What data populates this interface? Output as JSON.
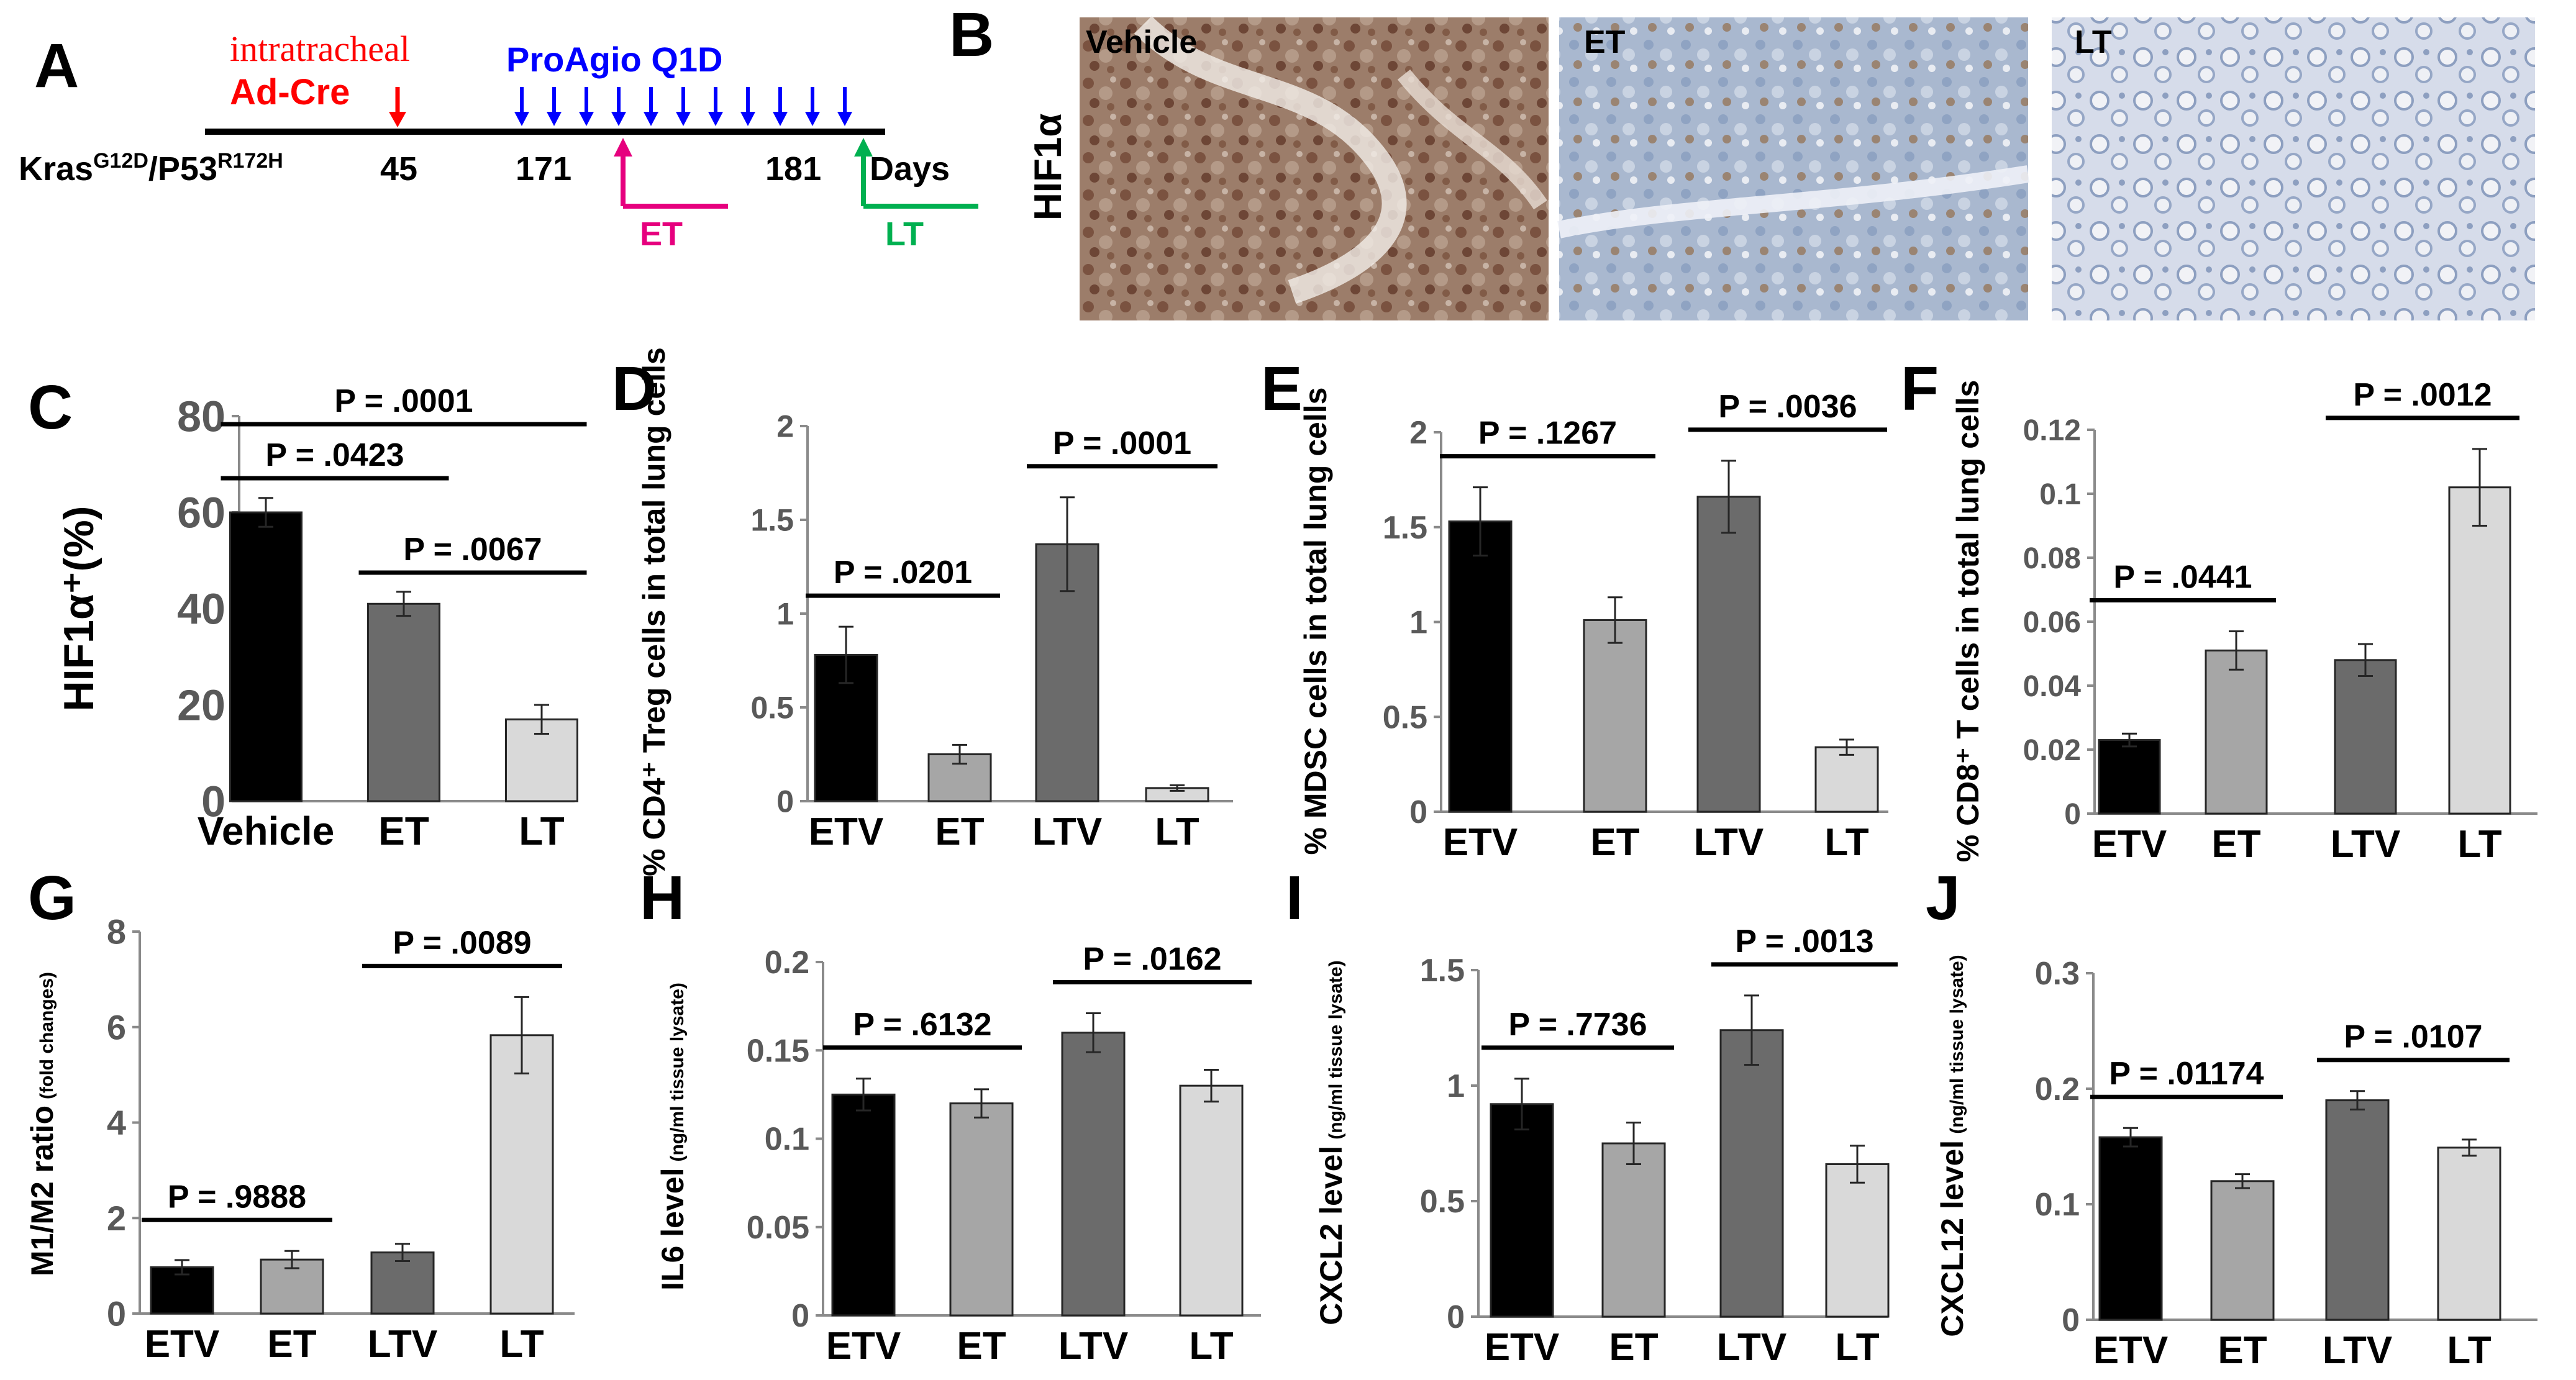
{
  "panels": {
    "A": "A",
    "B": "B",
    "C": "C",
    "D": "D",
    "E": "E",
    "F": "F",
    "G": "G",
    "H": "H",
    "I": "I",
    "J": "J"
  },
  "timeline": {
    "route": "intratracheal",
    "adcre": "Ad-Cre",
    "proagio": "ProAgio Q1D",
    "strain_kras": "Kras",
    "strain_kras_sup": "G12D",
    "strain_p53": "/P53",
    "strain_p53_sup": "R172H",
    "day_a": "45",
    "day_b": "171",
    "day_c": "181",
    "days": "Days",
    "et": "ET",
    "lt": "LT"
  },
  "histology": {
    "marker": "HIF1α",
    "images": [
      "Vehicle",
      "ET",
      "LT"
    ]
  },
  "colors": {
    "bar1": "#000000",
    "bar2": "#a6a6a6",
    "bar3": "#6b6b6b",
    "bar4": "#d9d9d9",
    "adcre": "#ff0000",
    "proagio": "#0000ff",
    "et_bracket": "#e6007e",
    "lt_bracket": "#00b050"
  },
  "chart_data": [
    {
      "panel": "C",
      "type": "bar",
      "categories": [
        "Vehicle",
        "ET",
        "LT"
      ],
      "values": [
        60,
        41,
        17
      ],
      "errors": [
        3,
        2.5,
        3
      ],
      "ylabel": "HIF1α⁺(%)",
      "ylim": [
        0,
        80
      ],
      "yticks": [
        "0",
        "20",
        "40",
        "60",
        "80"
      ],
      "pvalues": [
        {
          "label": "P = .0001",
          "from": 0,
          "to": 2
        },
        {
          "label": "P = .0423",
          "from": 0,
          "to": 1
        },
        {
          "label": "P = .0067",
          "from": 1,
          "to": 2
        }
      ]
    },
    {
      "panel": "D",
      "type": "bar",
      "categories": [
        "ETV",
        "ET",
        "LTV",
        "LT"
      ],
      "values": [
        0.78,
        0.25,
        1.37,
        0.07
      ],
      "errors": [
        0.15,
        0.05,
        0.25,
        0.015
      ],
      "ylabel": "% CD4⁺ Treg cells in total lung cells",
      "ylim": [
        0,
        2
      ],
      "yticks": [
        "0",
        "0.5",
        "1",
        "1.5",
        "2"
      ],
      "pvalues": [
        {
          "label": "P = .0201",
          "from": 0,
          "to": 1
        },
        {
          "label": "P = .0001",
          "from": 2,
          "to": 3
        }
      ]
    },
    {
      "panel": "E",
      "type": "bar",
      "categories": [
        "ETV",
        "ET",
        "LTV",
        "LT"
      ],
      "values": [
        1.53,
        1.01,
        1.66,
        0.34
      ],
      "errors": [
        0.18,
        0.12,
        0.19,
        0.04
      ],
      "ylabel": "% MDSC cells in total lung cells",
      "ylim": [
        0,
        2
      ],
      "yticks": [
        "0",
        "0.5",
        "1",
        "1.5",
        "2"
      ],
      "pvalues": [
        {
          "label": "P = .1267",
          "from": 0,
          "to": 1
        },
        {
          "label": "P = .0036",
          "from": 2,
          "to": 3
        }
      ]
    },
    {
      "panel": "F",
      "type": "bar",
      "categories": [
        "ETV",
        "ET",
        "LTV",
        "LT"
      ],
      "values": [
        0.023,
        0.051,
        0.048,
        0.102
      ],
      "errors": [
        0.002,
        0.006,
        0.005,
        0.012
      ],
      "ylabel": "% CD8⁺ T cells in total lung cells",
      "ylim": [
        0,
        0.12
      ],
      "yticks": [
        "0",
        "0.02",
        "0.04",
        "0.06",
        "0.08",
        "0.1",
        "0.12"
      ],
      "pvalues": [
        {
          "label": "P = .0441",
          "from": 0,
          "to": 1
        },
        {
          "label": "P = .0012",
          "from": 2,
          "to": 3
        }
      ]
    },
    {
      "panel": "G",
      "type": "bar",
      "categories": [
        "ETV",
        "ET",
        "LTV",
        "LT"
      ],
      "values": [
        0.97,
        1.13,
        1.28,
        5.83
      ],
      "errors": [
        0.15,
        0.18,
        0.18,
        0.8
      ],
      "ylabel": "M1/M2 ratio",
      "ylabel_small": "(fold changes)",
      "ylim": [
        0,
        8
      ],
      "yticks": [
        "0",
        "2",
        "4",
        "6",
        "8"
      ],
      "pvalues": [
        {
          "label": "P = .9888",
          "from": 0,
          "to": 1
        },
        {
          "label": "P = .0089",
          "from": 2,
          "to": 3
        }
      ]
    },
    {
      "panel": "H",
      "type": "bar",
      "categories": [
        "ETV",
        "ET",
        "LTV",
        "LT"
      ],
      "values": [
        0.125,
        0.12,
        0.16,
        0.13
      ],
      "errors": [
        0.009,
        0.008,
        0.011,
        0.009
      ],
      "ylabel": "IL6 level",
      "ylabel_small": "(ng/ml tissue lysate)",
      "ylim": [
        0,
        0.2
      ],
      "yticks": [
        "0",
        "0.05",
        "0.1",
        "0.15",
        "0.2"
      ],
      "pvalues": [
        {
          "label": "P = .6132",
          "from": 0,
          "to": 1
        },
        {
          "label": "P = .0162",
          "from": 2,
          "to": 3
        }
      ]
    },
    {
      "panel": "I",
      "type": "bar",
      "categories": [
        "ETV",
        "ET",
        "LTV",
        "LT"
      ],
      "values": [
        0.92,
        0.75,
        1.24,
        0.66
      ],
      "errors": [
        0.11,
        0.09,
        0.15,
        0.08
      ],
      "ylabel": "CXCL2 level",
      "ylabel_small": "(ng/ml tissue lysate)",
      "ylim": [
        0,
        1.5
      ],
      "yticks": [
        "0",
        "0.5",
        "1",
        "1.5"
      ],
      "pvalues": [
        {
          "label": "P = .7736",
          "from": 0,
          "to": 1
        },
        {
          "label": "P = .0013",
          "from": 2,
          "to": 3
        }
      ]
    },
    {
      "panel": "J",
      "type": "bar",
      "categories": [
        "ETV",
        "ET",
        "LTV",
        "LT"
      ],
      "values": [
        0.158,
        0.12,
        0.19,
        0.149
      ],
      "errors": [
        0.008,
        0.006,
        0.008,
        0.007
      ],
      "ylabel": "CXCL12 level",
      "ylabel_small": "(ng/ml tissue lysate)",
      "ylim": [
        0,
        0.3
      ],
      "yticks": [
        "0",
        "0.1",
        "0.2",
        "0.3"
      ],
      "pvalues": [
        {
          "label": "P = .01174",
          "from": 0,
          "to": 1
        },
        {
          "label": "P = .0107",
          "from": 2,
          "to": 3
        }
      ]
    }
  ]
}
